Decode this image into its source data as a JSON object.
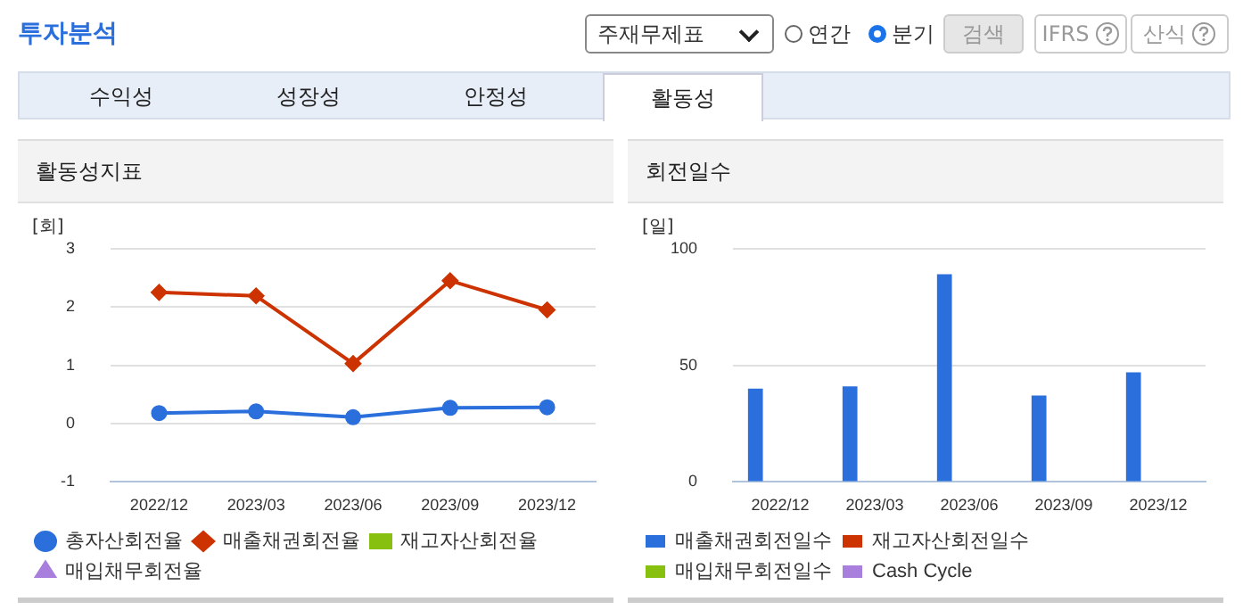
{
  "chart_data": [
    {
      "type": "other",
      "title": "투자분석",
      "annotations": [
        "주재무제표",
        "연간",
        "분기",
        "검색",
        "IFRS",
        "산식",
        "수익성",
        "성장성",
        "안정성",
        "활동성"
      ]
    },
    {
      "type": "line",
      "title": "활동성지표",
      "ylabel": "[회]",
      "categories": [
        "2022/12",
        "2023/03",
        "2023/06",
        "2023/09",
        "2023/12"
      ],
      "ylim": [
        -1,
        3
      ],
      "yticks": [
        -1,
        0,
        1,
        2,
        3
      ],
      "grid": "y",
      "legend": "bottom",
      "series": [
        {
          "name": "총자산회전율",
          "color": "#2a6fdb",
          "marker": "circle",
          "values": [
            0.18,
            0.21,
            0.11,
            0.27,
            0.28
          ]
        },
        {
          "name": "매출채권회전율",
          "color": "#cc3300",
          "marker": "diamond",
          "values": [
            2.25,
            2.19,
            1.03,
            2.45,
            1.95
          ]
        },
        {
          "name": "재고자산회전율",
          "color": "#88c010",
          "marker": "square",
          "values": [
            null,
            null,
            null,
            null,
            null
          ]
        },
        {
          "name": "매입채무회전율",
          "color": "#a87fdc",
          "marker": "triangle",
          "values": [
            null,
            null,
            null,
            null,
            null
          ]
        }
      ]
    },
    {
      "type": "bar",
      "title": "회전일수",
      "ylabel": "[일]",
      "categories": [
        "2022/12",
        "2023/03",
        "2023/06",
        "2023/09",
        "2023/12"
      ],
      "ylim": [
        0,
        100
      ],
      "yticks": [
        0,
        50,
        100
      ],
      "grid": "y",
      "legend": "bottom",
      "series": [
        {
          "name": "매출채권회전일수",
          "color": "#2a6fdb",
          "values": [
            40,
            41,
            89,
            37,
            47
          ]
        },
        {
          "name": "재고자산회전일수",
          "color": "#cc3300",
          "values": [
            null,
            null,
            null,
            null,
            null
          ]
        },
        {
          "name": "매입채무회전일수",
          "color": "#88c010",
          "values": [
            null,
            null,
            null,
            null,
            null
          ]
        },
        {
          "name": "Cash Cycle",
          "color": "#a87fdc",
          "values": [
            null,
            null,
            null,
            null,
            null
          ]
        }
      ]
    }
  ]
}
